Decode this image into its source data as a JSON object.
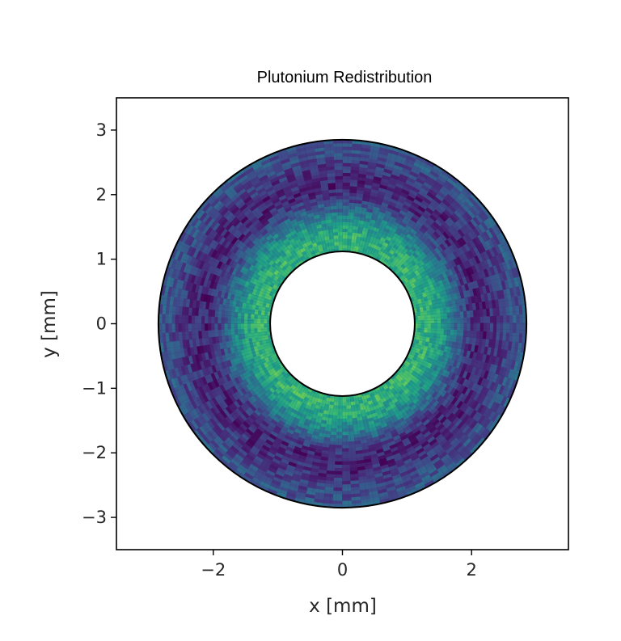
{
  "chart_data": {
    "type": "heatmap",
    "title": "Plutonium Redistribution",
    "xlabel": "x [mm]",
    "ylabel": "y [mm]",
    "xlim": [
      -3.5,
      3.5
    ],
    "ylim": [
      -3.5,
      3.5
    ],
    "xticks": [
      -2,
      0,
      2
    ],
    "yticks": [
      -3,
      -2,
      -1,
      0,
      1,
      2,
      3
    ],
    "xtick_labels": [
      "−2",
      "0",
      "2"
    ],
    "ytick_labels": [
      "−3",
      "−2",
      "−1",
      "0",
      "1",
      "2",
      "3"
    ],
    "grid": false,
    "colormap": "viridis",
    "annulus": {
      "inner_radius": 1.12,
      "outer_radius": 2.85,
      "center": [
        0,
        0
      ]
    },
    "radial_profile": {
      "r": [
        1.12,
        1.3,
        1.5,
        1.7,
        1.9,
        2.1,
        2.3,
        2.5,
        2.7,
        2.85
      ],
      "relative_concentration": [
        0.62,
        0.66,
        0.58,
        0.42,
        0.22,
        0.1,
        0.12,
        0.18,
        0.25,
        0.28
      ]
    },
    "outline_color": "#000000",
    "palette": [
      "#440154",
      "#482677",
      "#3f4a8a",
      "#31688e",
      "#26828e",
      "#1f9e89",
      "#35b779",
      "#6ece58",
      "#b5de2b",
      "#fde725"
    ]
  }
}
